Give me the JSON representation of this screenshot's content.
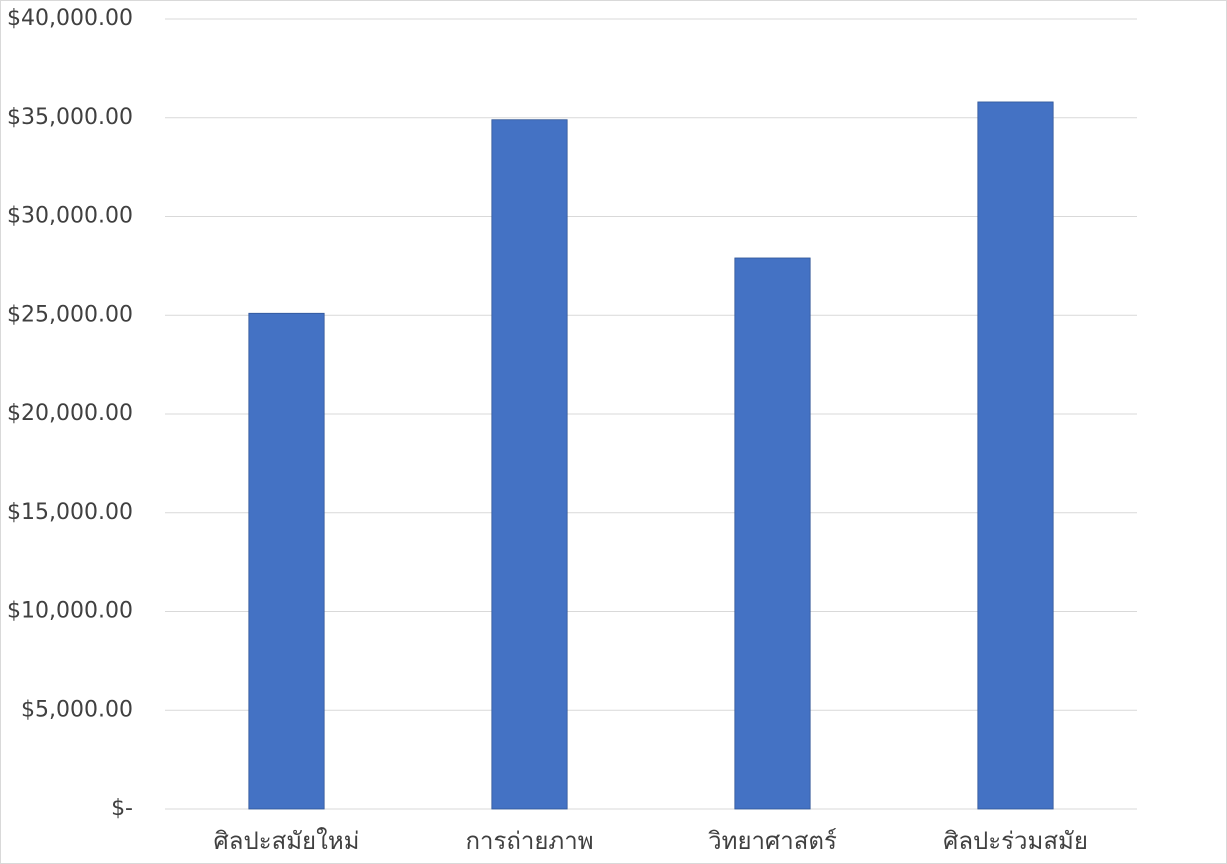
{
  "chart_data": {
    "type": "bar",
    "categories": [
      "ศิลปะสมัยใหม่",
      "การถ่ายภาพ",
      "วิทยาศาสตร์",
      "ศิลปะร่วมสมัย"
    ],
    "values": [
      25100,
      34900,
      27900,
      35800
    ],
    "color": "#4472c4",
    "ylim": [
      0,
      40000
    ],
    "yticks": [
      {
        "value": 0,
        "label": "$-"
      },
      {
        "value": 5000,
        "label": "$5,000.00"
      },
      {
        "value": 10000,
        "label": "$10,000.00"
      },
      {
        "value": 15000,
        "label": "$15,000.00"
      },
      {
        "value": 20000,
        "label": "$20,000.00"
      },
      {
        "value": 25000,
        "label": "$25,000.00"
      },
      {
        "value": 30000,
        "label": "$30,000.00"
      },
      {
        "value": 35000,
        "label": "$35,000.00"
      },
      {
        "value": 40000,
        "label": "$40,000.00"
      }
    ],
    "grid": true
  }
}
